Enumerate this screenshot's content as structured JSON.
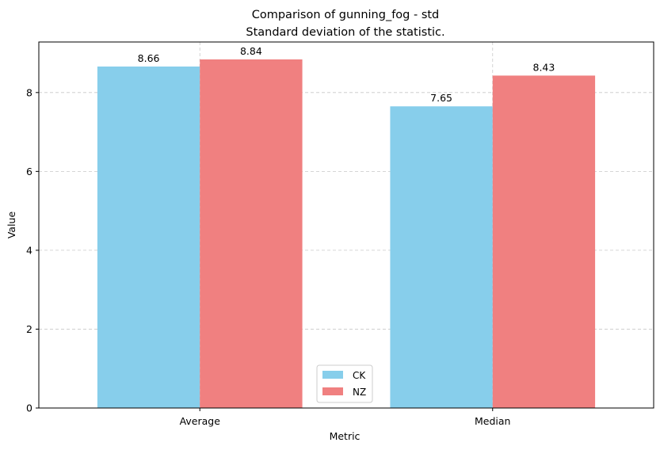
{
  "chart_data": {
    "type": "bar",
    "title": "Comparison of gunning_fog - std",
    "subtitle": "Standard deviation of the statistic.",
    "xlabel": "Metric",
    "ylabel": "Value",
    "categories": [
      "Average",
      "Median"
    ],
    "series": [
      {
        "name": "CK",
        "values": [
          8.66,
          7.65
        ],
        "color": "#87CEEB"
      },
      {
        "name": "NZ",
        "values": [
          8.84,
          8.43
        ],
        "color": "#F08080"
      }
    ],
    "data_labels": [
      [
        "8.66",
        "7.65"
      ],
      [
        "8.84",
        "8.43"
      ]
    ],
    "ylim": [
      0,
      9.282
    ],
    "yticks": [
      0,
      2,
      4,
      6,
      8
    ],
    "ytick_labels": [
      "0",
      "2",
      "4",
      "6",
      "8"
    ],
    "grid": true,
    "grid_style": "dashed",
    "legend_position": "lower center"
  }
}
